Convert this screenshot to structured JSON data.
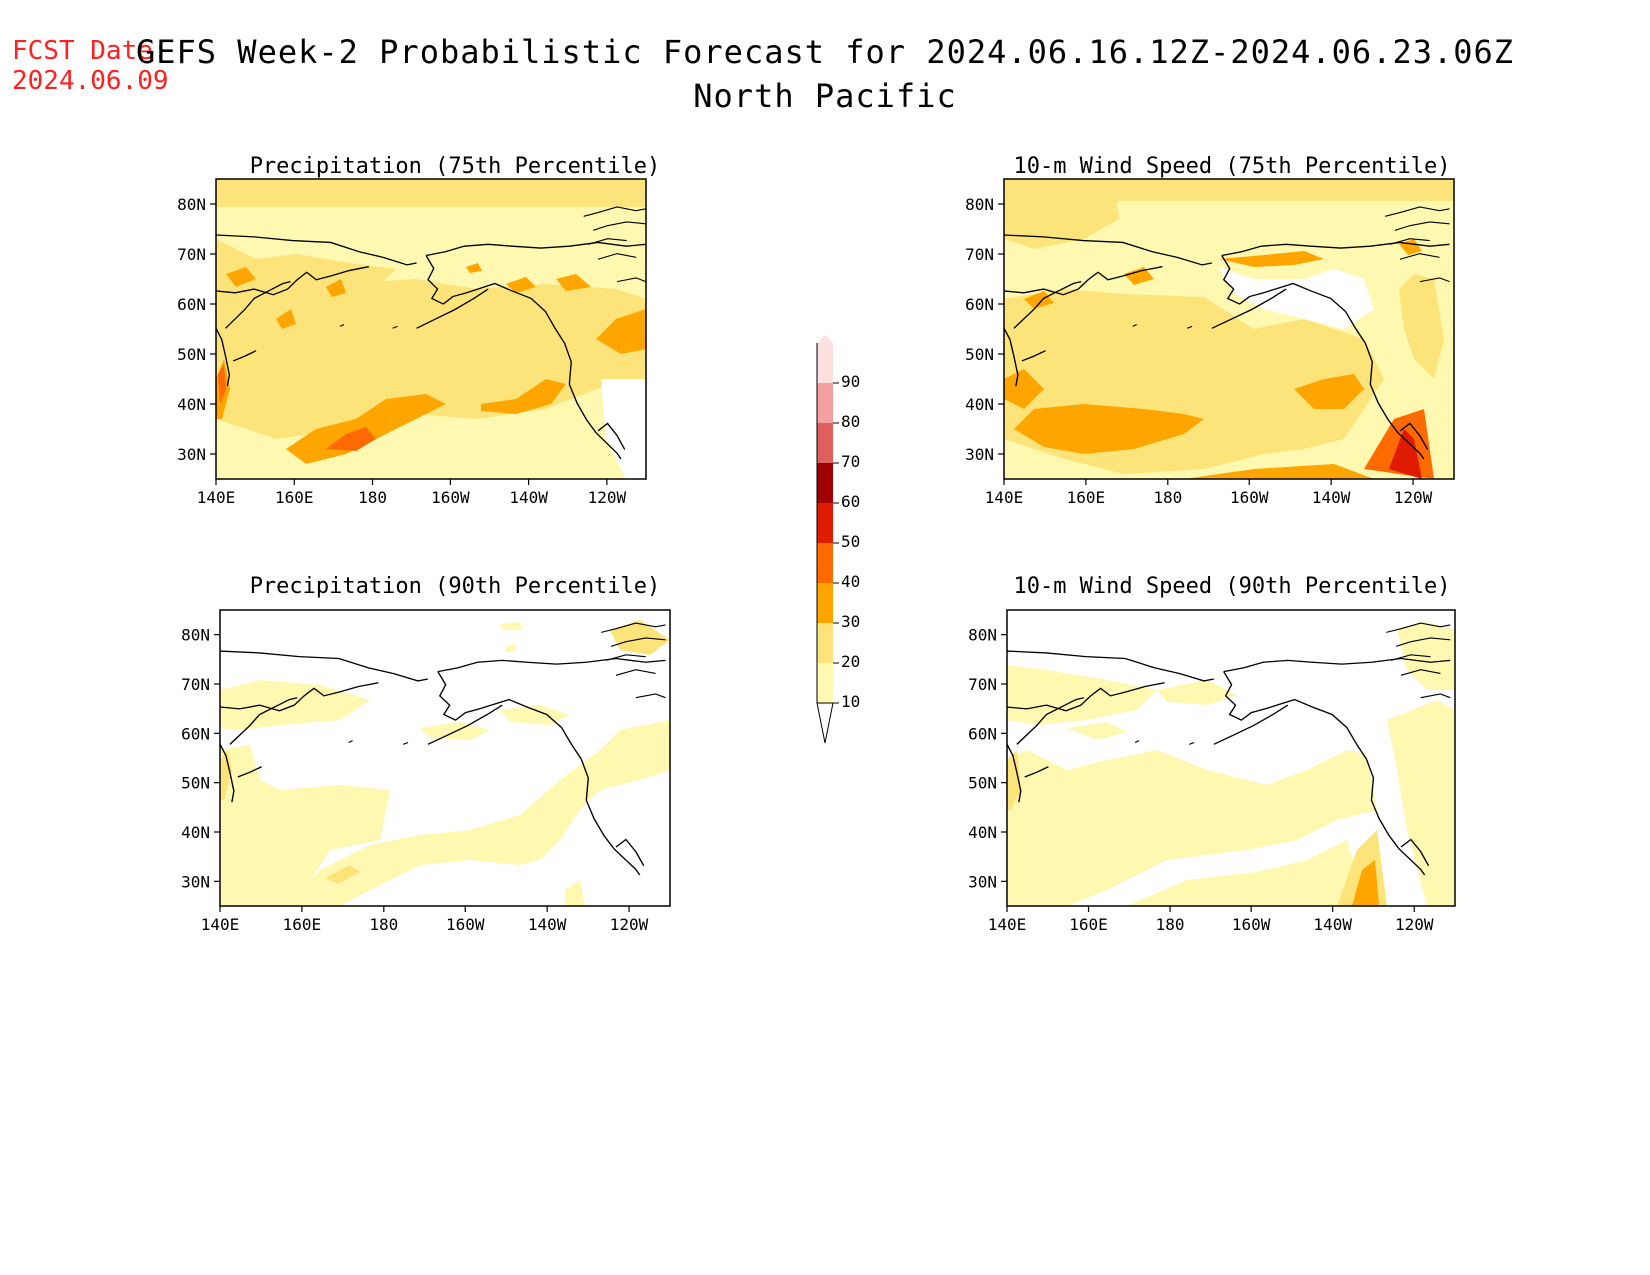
{
  "header": {
    "fcst_label": "FCST Date:",
    "fcst_date": "2024.06.09",
    "title": "GEFS Week-2 Probabilistic Forecast for 2024.06.16.12Z-2024.06.23.06Z",
    "region": "North Pacific"
  },
  "panels": [
    {
      "title": "Precipitation (75th Percentile)"
    },
    {
      "title": "10-m Wind Speed (75th Percentile)"
    },
    {
      "title": "Precipitation (90th Percentile)"
    },
    {
      "title": "10-m Wind Speed (90th Percentile)"
    }
  ],
  "axes": {
    "lat_labels": [
      "80N",
      "70N",
      "60N",
      "50N",
      "40N",
      "30N"
    ],
    "lon_labels": [
      "140E",
      "160E",
      "180",
      "160W",
      "140W",
      "120W"
    ]
  },
  "colorbar": {
    "levels": [
      "10",
      "20",
      "30",
      "40",
      "50",
      "60",
      "70",
      "80",
      "90"
    ],
    "colors": [
      "#fff8b0",
      "#fde47a",
      "#ffa500",
      "#ff6a00",
      "#e01c00",
      "#a00000",
      "#e06060",
      "#f4a0a0",
      "#fde0e0"
    ]
  },
  "colors": {
    "c10": "#fff8b0",
    "c20": "#fde47a",
    "c30": "#ffa500",
    "c40": "#ff6a00",
    "c50": "#e01c00",
    "coast": "#000000"
  }
}
